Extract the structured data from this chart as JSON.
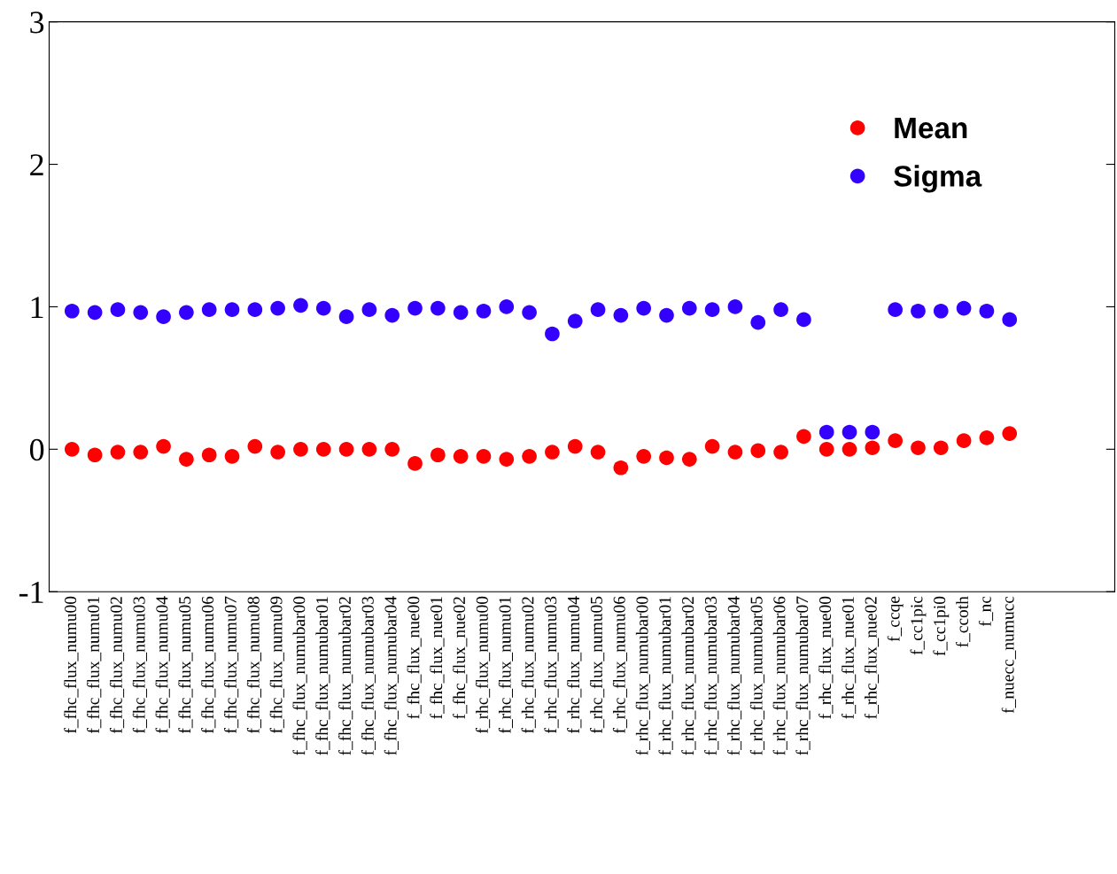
{
  "chart_data": {
    "type": "scatter",
    "categories": [
      "f_fhc_flux_numu00",
      "f_fhc_flux_numu01",
      "f_fhc_flux_numu02",
      "f_fhc_flux_numu03",
      "f_fhc_flux_numu04",
      "f_fhc_flux_numu05",
      "f_fhc_flux_numu06",
      "f_fhc_flux_numu07",
      "f_fhc_flux_numu08",
      "f_fhc_flux_numu09",
      "f_fhc_flux_numubar00",
      "f_fhc_flux_numubar01",
      "f_fhc_flux_numubar02",
      "f_fhc_flux_numubar03",
      "f_fhc_flux_numubar04",
      "f_fhc_flux_nue00",
      "f_fhc_flux_nue01",
      "f_fhc_flux_nue02",
      "f_rhc_flux_numu00",
      "f_rhc_flux_numu01",
      "f_rhc_flux_numu02",
      "f_rhc_flux_numu03",
      "f_rhc_flux_numu04",
      "f_rhc_flux_numu05",
      "f_rhc_flux_numu06",
      "f_rhc_flux_numubar00",
      "f_rhc_flux_numubar01",
      "f_rhc_flux_numubar02",
      "f_rhc_flux_numubar03",
      "f_rhc_flux_numubar04",
      "f_rhc_flux_numubar05",
      "f_rhc_flux_numubar06",
      "f_rhc_flux_numubar07",
      "f_rhc_flux_nue00",
      "f_rhc_flux_nue01",
      "f_rhc_flux_nue02",
      "f_ccqe",
      "f_cc1pic",
      "f_cc1pi0",
      "f_ccoth",
      "f_nc",
      "f_nuecc_numucc",
      null,
      null,
      null,
      null
    ],
    "series": [
      {
        "name": "Mean",
        "color": "#ff0000",
        "values": [
          0,
          -0.04,
          -0.02,
          -0.02,
          0.02,
          -0.07,
          -0.04,
          -0.05,
          0.02,
          -0.02,
          0,
          0,
          0,
          0,
          0,
          -0.1,
          -0.04,
          -0.05,
          -0.05,
          -0.07,
          -0.05,
          -0.02,
          0.02,
          -0.02,
          -0.13,
          -0.05,
          -0.06,
          -0.07,
          0.02,
          -0.02,
          -0.01,
          -0.02,
          0.09,
          0,
          0,
          0.01,
          0.06,
          0.01,
          0.01,
          0.06,
          0.08,
          0.11,
          null,
          null,
          null,
          null
        ]
      },
      {
        "name": "Sigma",
        "color": "#3300ff",
        "values": [
          0.97,
          0.96,
          0.98,
          0.96,
          0.93,
          0.96,
          0.98,
          0.98,
          0.98,
          0.99,
          1.01,
          0.99,
          0.93,
          0.98,
          0.94,
          0.99,
          0.99,
          0.96,
          0.97,
          1.0,
          0.96,
          0.81,
          0.9,
          0.98,
          0.94,
          0.99,
          0.94,
          0.99,
          0.98,
          1.0,
          0.89,
          0.98,
          0.91,
          0.12,
          0.12,
          0.12,
          0.98,
          0.97,
          0.97,
          0.99,
          0.97,
          0.91,
          null,
          null,
          null,
          null
        ]
      }
    ],
    "ylim": [
      -1,
      3
    ],
    "yticks": [
      -1,
      0,
      1,
      2,
      3
    ],
    "marker": "circle",
    "legend": "top right",
    "grid": false
  }
}
